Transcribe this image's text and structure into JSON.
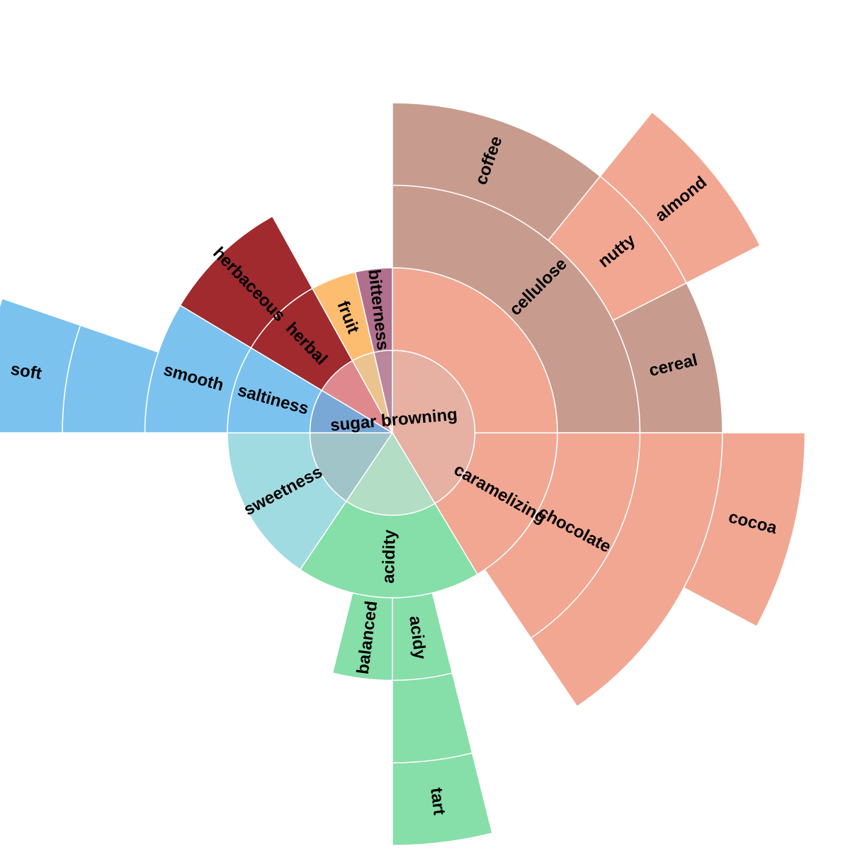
{
  "chart_data": {
    "type": "sunburst",
    "nodes": [
      {
        "id": "sugar_browning",
        "label": "sugar browning",
        "depth": 1,
        "angles": [
          0,
          149
        ],
        "color": "#e6b0a2"
      },
      {
        "id": "acidity_group",
        "label": "",
        "depth": 1,
        "angles": [
          149,
          214
        ],
        "color": "#b3ddc4"
      },
      {
        "id": "sweetness_group",
        "label": "",
        "depth": 1,
        "angles": [
          214,
          270
        ],
        "color": "#a1c4c8"
      },
      {
        "id": "saltiness_group",
        "label": "",
        "depth": 1,
        "angles": [
          270,
          301
        ],
        "color": "#7aa8d6"
      },
      {
        "id": "herbal_group",
        "label": "",
        "depth": 1,
        "angles": [
          301,
          331
        ],
        "color": "#df898e"
      },
      {
        "id": "fruit_group",
        "label": "",
        "depth": 1,
        "angles": [
          331,
          347
        ],
        "color": "#eac38e"
      },
      {
        "id": "bitterness_group",
        "label": "",
        "depth": 1,
        "angles": [
          347,
          360
        ],
        "color": "#b9879e"
      },
      {
        "id": "caramelizing",
        "label": "caramelizing",
        "depth": 2,
        "angles": [
          90,
          149
        ],
        "color": "#f1a792"
      },
      {
        "id": "sugar_inner",
        "label": "",
        "depth": 2,
        "angles": [
          0,
          90
        ],
        "color": "#f1a792"
      },
      {
        "id": "acidity",
        "label": "acidity",
        "depth": 2,
        "angles": [
          149,
          214
        ],
        "color": "#86dea8"
      },
      {
        "id": "sweetness",
        "label": "sweetness",
        "depth": 2,
        "angles": [
          214,
          270
        ],
        "color": "#a1dbe2"
      },
      {
        "id": "saltiness",
        "label": "saltiness",
        "depth": 2,
        "angles": [
          270,
          301
        ],
        "color": "#7bc2ef"
      },
      {
        "id": "herbal",
        "label": "herbal",
        "depth": 2,
        "angles": [
          301,
          331
        ],
        "color": "#a02a2e"
      },
      {
        "id": "fruit",
        "label": "fruit",
        "depth": 2,
        "angles": [
          331,
          347
        ],
        "color": "#fdbd70"
      },
      {
        "id": "bitterness",
        "label": "bitterness",
        "depth": 2,
        "angles": [
          347,
          360
        ],
        "color": "#b0708d"
      },
      {
        "id": "cellulose",
        "label": "cellulose",
        "depth": 3,
        "angles": [
          0,
          90
        ],
        "color": "#c79c8e"
      },
      {
        "id": "chocolate",
        "label": "chocolate",
        "depth": 3,
        "angles": [
          90,
          146
        ],
        "color": "#f1a792"
      },
      {
        "id": "acidy",
        "label": "acidy",
        "depth": 3,
        "angles": [
          166,
          180
        ],
        "color": "#86dea8"
      },
      {
        "id": "balanced",
        "label": "balanced",
        "depth": 3,
        "angles": [
          180,
          194
        ],
        "color": "#86dea8"
      },
      {
        "id": "smooth",
        "label": "smooth",
        "depth": 3,
        "angles": [
          270,
          301
        ],
        "color": "#7bc2ef"
      },
      {
        "id": "herbaceous",
        "label": "herbaceous",
        "depth": 3,
        "angles": [
          301,
          331
        ],
        "color": "#a02a2e"
      },
      {
        "id": "coffee",
        "label": "coffee",
        "depth": 4,
        "angles": [
          0,
          39
        ],
        "color": "#c79c8e"
      },
      {
        "id": "nutty",
        "label": "nutty",
        "depth": 4,
        "angles": [
          39,
          63
        ],
        "color": "#f1a792"
      },
      {
        "id": "cereal",
        "label": "cereal",
        "depth": 4,
        "angles": [
          63,
          90
        ],
        "color": "#c79c8e"
      },
      {
        "id": "cocoa_parent",
        "label": "",
        "depth": 4,
        "angles": [
          90,
          146
        ],
        "color": "#f1a792"
      },
      {
        "id": "tart_parent",
        "label": "",
        "depth": 4,
        "angles": [
          166,
          180
        ],
        "color": "#86dea8"
      },
      {
        "id": "soft_parent",
        "label": "",
        "depth": 4,
        "angles": [
          270,
          289
        ],
        "color": "#7bc2ef"
      },
      {
        "id": "almond",
        "label": "almond",
        "depth": 5,
        "angles": [
          39,
          63
        ],
        "color": "#f1a792"
      },
      {
        "id": "cocoa",
        "label": "cocoa",
        "depth": 5,
        "angles": [
          90,
          118
        ],
        "color": "#f1a792"
      },
      {
        "id": "tart",
        "label": "tart",
        "depth": 5,
        "angles": [
          166,
          180
        ],
        "color": "#86dea8"
      },
      {
        "id": "soft",
        "label": "soft",
        "depth": 5,
        "angles": [
          270,
          289
        ],
        "color": "#7bc2ef"
      }
    ]
  }
}
